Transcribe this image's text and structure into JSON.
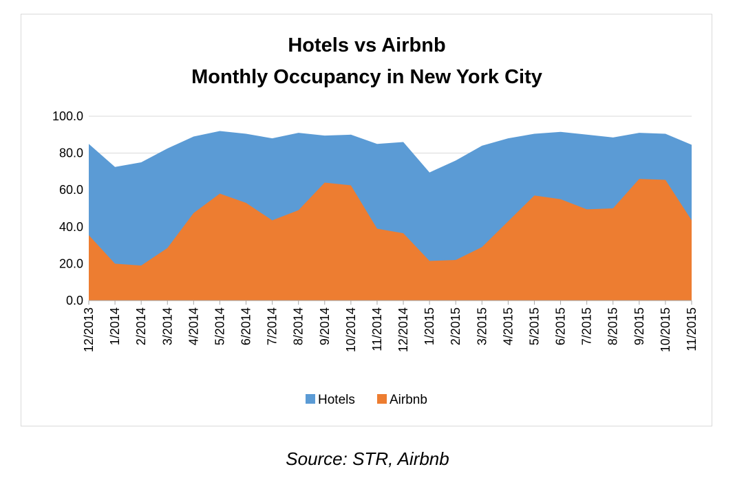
{
  "caption": "Source: STR, Airbnb",
  "chart_data": {
    "type": "area",
    "title_lines": [
      "Hotels vs Airbnb",
      "Monthly Occupancy in New York City"
    ],
    "categories": [
      "12/2013",
      "1/2014",
      "2/2014",
      "3/2014",
      "4/2014",
      "5/2014",
      "6/2014",
      "7/2014",
      "8/2014",
      "9/2014",
      "10/2014",
      "11/2014",
      "12/2014",
      "1/2015",
      "2/2015",
      "3/2015",
      "4/2015",
      "5/2015",
      "6/2015",
      "7/2015",
      "8/2015",
      "9/2015",
      "10/2015",
      "11/2015"
    ],
    "y_tick_labels": [
      "0.0",
      "20.0",
      "40.0",
      "60.0",
      "80.0",
      "100.0"
    ],
    "ylim": [
      0,
      100
    ],
    "grid": true,
    "legend_position": "bottom",
    "series": [
      {
        "name": "Hotels",
        "color": "#5b9bd5",
        "values": [
          85,
          72.5,
          75,
          82.5,
          89,
          92,
          90.5,
          88,
          91,
          89.5,
          90,
          85,
          86,
          69.5,
          76,
          84,
          88,
          90.5,
          91.5,
          90,
          88.5,
          91,
          90.5,
          84.5
        ]
      },
      {
        "name": "Airbnb",
        "color": "#ed7d31",
        "values": [
          35.5,
          20,
          19,
          28.5,
          47.5,
          58,
          53,
          43.5,
          49,
          64,
          62.5,
          39,
          36.5,
          21.5,
          22,
          29,
          43,
          57,
          55,
          49.5,
          50,
          66,
          65.5,
          43.5
        ]
      }
    ]
  }
}
